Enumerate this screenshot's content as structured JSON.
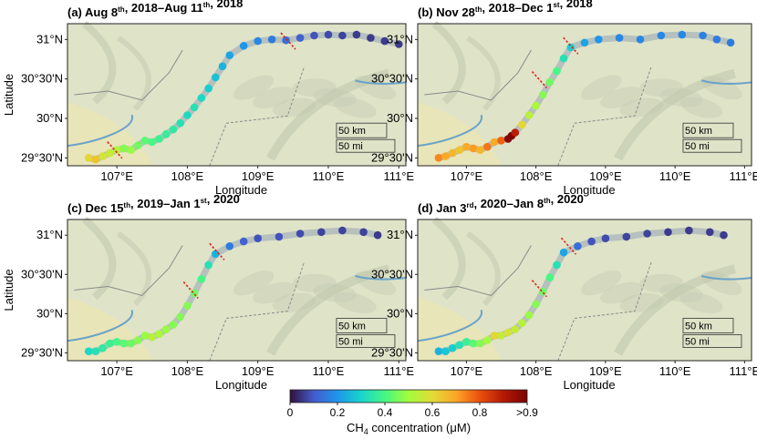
{
  "figure": {
    "y_axis_label": "Latitude",
    "x_axis_label": "Longitude",
    "x_ticks": [
      "107°E",
      "108°E",
      "109°E",
      "110°E",
      "111°E"
    ],
    "y_ticks": [
      "31°N",
      "30°30'N",
      "30°N",
      "29°30'N"
    ],
    "scalebar": {
      "km": "50 km",
      "mi": "50 mi"
    },
    "colorbar": {
      "ticks": [
        "0",
        "0.2",
        "0.4",
        "0.6",
        "0.8",
        ">0.9"
      ],
      "label_prefix": "CH",
      "label_sub": "4",
      "label_suffix": " concentration (μM)",
      "colormap": "turbo",
      "range": [
        0,
        0.9
      ]
    },
    "colors": {
      "land": "#dfe3c8",
      "relief": "#c9cfb6",
      "lowland": "#e9e4b6",
      "river": "#6aa3c8",
      "boundary": "#8a8a8a",
      "dam_marker": "#e0201b"
    }
  },
  "chart_data": [
    {
      "type": "scatter",
      "panel": "a",
      "title": [
        {
          "t": "(a) Aug 8",
          "w": "bold"
        },
        {
          "t": "th",
          "sup": true
        },
        {
          "t": ", 2018–Aug 11"
        },
        {
          "t": "th",
          "sup": true
        },
        {
          "t": ", 2018"
        }
      ],
      "xlabel": "Longitude",
      "ylabel": "Latitude",
      "xlim": [
        106.3,
        111.1
      ],
      "ylim": [
        29.4,
        31.2
      ],
      "dams": [
        [
          106.97,
          29.6
        ],
        [
          109.43,
          30.98
        ]
      ],
      "points": [
        [
          106.6,
          29.5,
          0.55
        ],
        [
          106.7,
          29.48,
          0.58
        ],
        [
          106.8,
          29.52,
          0.52
        ],
        [
          106.9,
          29.56,
          0.5
        ],
        [
          107.0,
          29.6,
          0.48
        ],
        [
          107.1,
          29.62,
          0.42
        ],
        [
          107.2,
          29.6,
          0.44
        ],
        [
          107.3,
          29.66,
          0.4
        ],
        [
          107.4,
          29.72,
          0.38
        ],
        [
          107.5,
          29.7,
          0.36
        ],
        [
          107.6,
          29.74,
          0.34
        ],
        [
          107.7,
          29.8,
          0.33
        ],
        [
          107.8,
          29.86,
          0.32
        ],
        [
          107.9,
          29.94,
          0.3
        ],
        [
          108.0,
          30.04,
          0.28
        ],
        [
          108.1,
          30.14,
          0.3
        ],
        [
          108.2,
          30.26,
          0.28
        ],
        [
          108.3,
          30.38,
          0.26
        ],
        [
          108.4,
          30.52,
          0.24
        ],
        [
          108.5,
          30.66,
          0.22
        ],
        [
          108.6,
          30.8,
          0.2
        ],
        [
          108.8,
          30.92,
          0.18
        ],
        [
          109.0,
          30.98,
          0.16
        ],
        [
          109.2,
          31.0,
          0.14
        ],
        [
          109.4,
          30.99,
          0.12
        ],
        [
          109.6,
          31.02,
          0.1
        ],
        [
          109.8,
          31.05,
          0.08
        ],
        [
          110.0,
          31.06,
          0.07
        ],
        [
          110.2,
          31.05,
          0.06
        ],
        [
          110.4,
          31.06,
          0.05
        ],
        [
          110.6,
          31.02,
          0.05
        ],
        [
          110.8,
          30.98,
          0.05
        ],
        [
          111.0,
          30.94,
          0.05
        ]
      ]
    },
    {
      "type": "scatter",
      "panel": "b",
      "title": [
        {
          "t": "(b) Nov 28",
          "w": "bold"
        },
        {
          "t": "th",
          "sup": true
        },
        {
          "t": ", 2018–Dec 1"
        },
        {
          "t": "st",
          "sup": true
        },
        {
          "t": ", 2018"
        }
      ],
      "xlabel": "Longitude",
      "ylabel": "",
      "xlim": [
        106.3,
        111.1
      ],
      "ylim": [
        29.4,
        31.2
      ],
      "dams": [
        [
          108.5,
          30.92
        ],
        [
          108.05,
          30.49
        ]
      ],
      "points": [
        [
          106.6,
          29.5,
          0.66
        ],
        [
          106.7,
          29.52,
          0.62
        ],
        [
          106.8,
          29.56,
          0.6
        ],
        [
          106.9,
          29.6,
          0.58
        ],
        [
          107.0,
          29.64,
          0.62
        ],
        [
          107.1,
          29.62,
          0.64
        ],
        [
          107.2,
          29.6,
          0.6
        ],
        [
          107.3,
          29.64,
          0.68
        ],
        [
          107.4,
          29.7,
          0.62
        ],
        [
          107.5,
          29.72,
          0.7
        ],
        [
          107.6,
          29.74,
          0.88
        ],
        [
          107.65,
          29.78,
          0.92
        ],
        [
          107.7,
          29.82,
          0.8
        ],
        [
          107.8,
          29.92,
          0.55
        ],
        [
          107.9,
          30.04,
          0.48
        ],
        [
          108.0,
          30.16,
          0.46
        ],
        [
          108.1,
          30.3,
          0.42
        ],
        [
          108.2,
          30.46,
          0.4
        ],
        [
          108.3,
          30.6,
          0.36
        ],
        [
          108.4,
          30.76,
          0.3
        ],
        [
          108.5,
          30.9,
          0.26
        ],
        [
          108.7,
          30.96,
          0.2
        ],
        [
          108.9,
          31.0,
          0.18
        ],
        [
          109.2,
          31.02,
          0.16
        ],
        [
          109.5,
          31.0,
          0.16
        ],
        [
          109.8,
          31.05,
          0.16
        ],
        [
          110.1,
          31.06,
          0.16
        ],
        [
          110.4,
          31.05,
          0.15
        ],
        [
          110.6,
          31.0,
          0.14
        ],
        [
          110.8,
          30.96,
          0.14
        ]
      ]
    },
    {
      "type": "scatter",
      "panel": "c",
      "title": [
        {
          "t": "(c) Dec 15",
          "w": "bold"
        },
        {
          "t": "th",
          "sup": true
        },
        {
          "t": ", 2019–Jan 1"
        },
        {
          "t": "st",
          "sup": true
        },
        {
          "t": ", 2020"
        }
      ],
      "xlabel": "Longitude",
      "ylabel": "Latitude",
      "xlim": [
        106.3,
        111.1
      ],
      "ylim": [
        29.4,
        31.2
      ],
      "dams": [
        [
          108.05,
          30.3
        ],
        [
          108.42,
          30.79
        ]
      ],
      "points": [
        [
          106.6,
          29.52,
          0.28
        ],
        [
          106.7,
          29.52,
          0.3
        ],
        [
          106.8,
          29.56,
          0.32
        ],
        [
          106.9,
          29.62,
          0.34
        ],
        [
          107.0,
          29.64,
          0.36
        ],
        [
          107.1,
          29.62,
          0.38
        ],
        [
          107.2,
          29.62,
          0.4
        ],
        [
          107.3,
          29.66,
          0.42
        ],
        [
          107.4,
          29.72,
          0.44
        ],
        [
          107.5,
          29.7,
          0.48
        ],
        [
          107.6,
          29.74,
          0.46
        ],
        [
          107.7,
          29.8,
          0.44
        ],
        [
          107.8,
          29.86,
          0.42
        ],
        [
          107.9,
          29.96,
          0.42
        ],
        [
          108.0,
          30.1,
          0.42
        ],
        [
          108.1,
          30.26,
          0.4
        ],
        [
          108.2,
          30.44,
          0.36
        ],
        [
          108.3,
          30.62,
          0.3
        ],
        [
          108.4,
          30.76,
          0.22
        ],
        [
          108.6,
          30.86,
          0.14
        ],
        [
          108.8,
          30.92,
          0.1
        ],
        [
          109.0,
          30.96,
          0.08
        ],
        [
          109.3,
          30.98,
          0.08
        ],
        [
          109.6,
          31.02,
          0.07
        ],
        [
          109.9,
          31.04,
          0.06
        ],
        [
          110.2,
          31.06,
          0.06
        ],
        [
          110.5,
          31.04,
          0.06
        ],
        [
          110.7,
          31.0,
          0.05
        ]
      ]
    },
    {
      "type": "scatter",
      "panel": "d",
      "title": [
        {
          "t": "(d) Jan 3",
          "w": "bold"
        },
        {
          "t": "rd",
          "sup": true
        },
        {
          "t": ", 2020–Jan 8"
        },
        {
          "t": "th",
          "sup": true
        },
        {
          "t": ", 2020"
        }
      ],
      "xlabel": "Longitude",
      "ylabel": "",
      "xlim": [
        106.3,
        111.1
      ],
      "ylim": [
        29.4,
        31.2
      ],
      "dams": [
        [
          108.05,
          30.32
        ],
        [
          108.47,
          30.86
        ]
      ],
      "points": [
        [
          106.6,
          29.52,
          0.22
        ],
        [
          106.7,
          29.52,
          0.25
        ],
        [
          106.8,
          29.56,
          0.26
        ],
        [
          106.9,
          29.6,
          0.3
        ],
        [
          107.0,
          29.64,
          0.34
        ],
        [
          107.1,
          29.62,
          0.38
        ],
        [
          107.2,
          29.62,
          0.42
        ],
        [
          107.3,
          29.66,
          0.45
        ],
        [
          107.4,
          29.72,
          0.55
        ],
        [
          107.5,
          29.72,
          0.5
        ],
        [
          107.6,
          29.76,
          0.52
        ],
        [
          107.7,
          29.8,
          0.5
        ],
        [
          107.8,
          29.88,
          0.48
        ],
        [
          107.9,
          29.98,
          0.44
        ],
        [
          108.0,
          30.12,
          0.42
        ],
        [
          108.1,
          30.28,
          0.4
        ],
        [
          108.2,
          30.46,
          0.36
        ],
        [
          108.3,
          30.62,
          0.3
        ],
        [
          108.4,
          30.78,
          0.2
        ],
        [
          108.6,
          30.86,
          0.12
        ],
        [
          108.8,
          30.92,
          0.08
        ],
        [
          109.0,
          30.96,
          0.07
        ],
        [
          109.3,
          30.98,
          0.06
        ],
        [
          109.6,
          31.02,
          0.06
        ],
        [
          109.9,
          31.04,
          0.05
        ],
        [
          110.2,
          31.06,
          0.05
        ],
        [
          110.5,
          31.04,
          0.05
        ],
        [
          110.7,
          31.0,
          0.05
        ]
      ]
    }
  ]
}
